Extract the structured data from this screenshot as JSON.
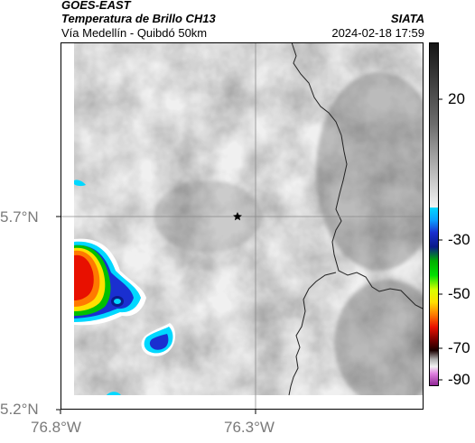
{
  "header": {
    "satellite": "GOES-EAST",
    "product": "Temperatura de Brillo CH13",
    "region": "Vía Medellín - Quibdó 50km",
    "agency": "SIATA",
    "datetime": "2024-02-18 17:59"
  },
  "axes": {
    "x_ticks": [
      "76.8°W",
      "76.3°W"
    ],
    "y_ticks": [
      "5.7°N",
      "5.2°N"
    ]
  },
  "colorbar": {
    "labels": [
      "20",
      "-30",
      "-50",
      "-70",
      "-90"
    ]
  },
  "marker": {
    "icon": "star-marker-icon"
  },
  "colors": {
    "frame": "#000000",
    "tick_text": "#7a7a7a",
    "grid": "#8a8a8a",
    "boundary": "#222222"
  }
}
